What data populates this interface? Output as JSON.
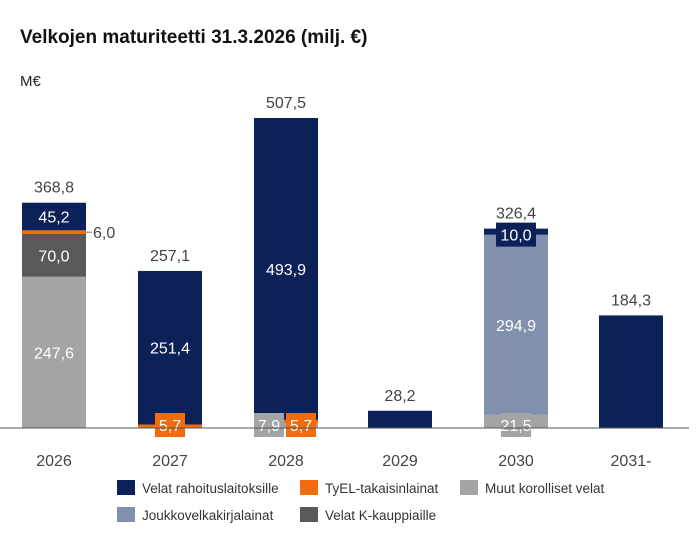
{
  "chart_data": {
    "type": "bar",
    "stacked": true,
    "title": "Velkojen maturiteetti 31.3.2026 (milj. €)",
    "ylabel": "M€",
    "xlabel": "",
    "ylim": [
      0,
      540
    ],
    "grid": false,
    "legend_position": "bottom",
    "categories": [
      "2026",
      "2027",
      "2028",
      "2029",
      "2030",
      "2031-"
    ],
    "totals": [
      "368,8",
      "257,1",
      "507,5",
      "28,2",
      "326,4",
      "184,3"
    ],
    "series": [
      {
        "name": "Muut korolliset velat",
        "color": "#a2a4a6",
        "values": [
          247.6,
          0,
          7.9,
          0,
          21.5,
          0
        ],
        "labels": [
          "247,6",
          "",
          "7,9",
          "",
          "21,5",
          ""
        ]
      },
      {
        "name": "Joukkovelkakirjalainat",
        "color": "#8090ad",
        "values": [
          0,
          0,
          0,
          0,
          294.9,
          0
        ],
        "labels": [
          "",
          "",
          "",
          "",
          "294,9",
          ""
        ]
      },
      {
        "name": "Velat K-kauppiaille",
        "color": "#58595b",
        "values": [
          70.0,
          0,
          0,
          0,
          0,
          0
        ],
        "labels": [
          "70,0",
          "",
          "",
          "",
          "",
          ""
        ]
      },
      {
        "name": "TyEL-takaisinlainat",
        "color": "#f26c0d",
        "values": [
          6.0,
          5.7,
          5.7,
          0,
          0,
          0
        ],
        "labels": [
          "6,0",
          "5,7",
          "5,7",
          "",
          "",
          ""
        ]
      },
      {
        "name": "Velat rahoituslaitoksille",
        "color": "#0d2159",
        "values": [
          45.2,
          251.4,
          493.9,
          28.2,
          10.0,
          184.3
        ],
        "labels": [
          "45,2",
          "251,4",
          "493,9",
          "",
          "10,0",
          ""
        ]
      }
    ],
    "legend": [
      {
        "name": "Velat rahoituslaitoksille",
        "color": "#0d2159"
      },
      {
        "name": "TyEL-takaisinlainat",
        "color": "#f26c0d"
      },
      {
        "name": "Muut korolliset velat",
        "color": "#a2a4a6"
      },
      {
        "name": "Joukkovelkakirjalainat",
        "color": "#8090ad"
      },
      {
        "name": "Velat K-kauppiaille",
        "color": "#58595b"
      }
    ]
  }
}
